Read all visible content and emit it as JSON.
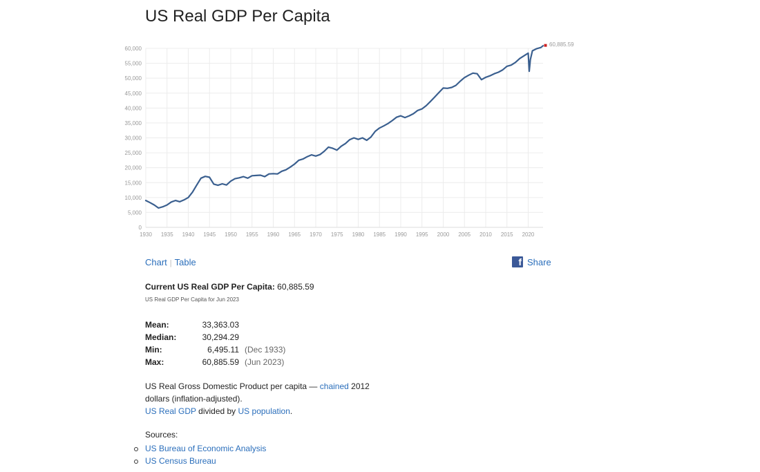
{
  "page": {
    "title": "US Real GDP Per Capita"
  },
  "chart_data": {
    "type": "line",
    "title": "",
    "xlabel": "",
    "ylabel": "",
    "xlim": [
      1930,
      2023.5
    ],
    "ylim": [
      0,
      60000
    ],
    "x_ticks": [
      1930,
      1935,
      1940,
      1945,
      1950,
      1955,
      1960,
      1965,
      1970,
      1975,
      1980,
      1985,
      1990,
      1995,
      2000,
      2005,
      2010,
      2015,
      2020
    ],
    "y_ticks": [
      0,
      5000,
      10000,
      15000,
      20000,
      25000,
      30000,
      35000,
      40000,
      45000,
      50000,
      55000,
      60000
    ],
    "y_tick_labels": [
      "0",
      "5,000",
      "10,000",
      "15,000",
      "20,000",
      "25,000",
      "30,000",
      "35,000",
      "40,000",
      "45,000",
      "50,000",
      "55,000",
      "60,000"
    ],
    "grid": true,
    "line_color": "#3a5f8f",
    "last_point_color": "#cc2222",
    "last_value_label": "60,885.59",
    "series": [
      {
        "x": [
          1930,
          1931,
          1932,
          1933,
          1934,
          1935,
          1936,
          1937,
          1938,
          1939,
          1940,
          1941,
          1942,
          1943,
          1944,
          1945,
          1946,
          1947,
          1948,
          1949,
          1950,
          1951,
          1952,
          1953,
          1954,
          1955,
          1956,
          1957,
          1958,
          1959,
          1960,
          1961,
          1962,
          1963,
          1964,
          1965,
          1966,
          1967,
          1968,
          1969,
          1970,
          1971,
          1972,
          1973,
          1974,
          1975,
          1976,
          1977,
          1978,
          1979,
          1980,
          1981,
          1982,
          1983,
          1984,
          1985,
          1986,
          1987,
          1988,
          1989,
          1990,
          1991,
          1992,
          1993,
          1994,
          1995,
          1996,
          1997,
          1998,
          1999,
          2000,
          2001,
          2002,
          2003,
          2004,
          2005,
          2006,
          2007,
          2008,
          2009,
          2010,
          2011,
          2012,
          2013,
          2014,
          2015,
          2016,
          2017,
          2018,
          2019,
          2020,
          2020.25,
          2020.5,
          2021,
          2022,
          2023,
          2023.5
        ],
        "y": [
          9000,
          8300,
          7500,
          6495,
          6900,
          7500,
          8500,
          9000,
          8600,
          9200,
          10000,
          11800,
          14200,
          16500,
          17100,
          16800,
          14500,
          14100,
          14600,
          14200,
          15500,
          16300,
          16600,
          17000,
          16500,
          17300,
          17400,
          17500,
          17000,
          17900,
          18000,
          17900,
          18800,
          19300,
          20200,
          21200,
          22500,
          22900,
          23700,
          24300,
          23900,
          24400,
          25500,
          26900,
          26500,
          25900,
          27200,
          28100,
          29400,
          30000,
          29500,
          30000,
          29200,
          30300,
          32200,
          33300,
          34000,
          34800,
          35800,
          36900,
          37400,
          36800,
          37400,
          38100,
          39200,
          39700,
          40800,
          42200,
          43700,
          45200,
          46700,
          46600,
          46900,
          47600,
          49000,
          50200,
          51000,
          51700,
          51500,
          49500,
          50300,
          50800,
          51500,
          52000,
          52800,
          54000,
          54400,
          55300,
          56600,
          57500,
          58400,
          52300,
          56200,
          59200,
          59900,
          60300,
          60886
        ]
      }
    ]
  },
  "tabs": {
    "chart_label": "Chart",
    "sep": "|",
    "table_label": "Table"
  },
  "share": {
    "label": "Share",
    "icon": "facebook-icon",
    "icon_color": "#3b5998"
  },
  "current": {
    "label": "Current US Real GDP Per Capita:",
    "value": "60,885.59",
    "subtitle": "US Real GDP Per Capita for Jun 2023"
  },
  "stats": {
    "mean_label": "Mean:",
    "mean_value": "33,363.03",
    "median_label": "Median:",
    "median_value": "30,294.29",
    "min_label": "Min:",
    "min_value": "6,495.11",
    "min_date": "(Dec 1933)",
    "max_label": "Max:",
    "max_value": "60,885.59",
    "max_date": "(Jun 2023)"
  },
  "description": {
    "text1": "US Real Gross Domestic Product per capita — ",
    "link_chained": "chained",
    "text2": " 2012 dollars (inflation-adjusted).",
    "link_real_gdp": "US Real GDP",
    "text3": " divided by ",
    "link_population": "US population",
    "text4": "."
  },
  "sources": {
    "label": "Sources:",
    "items": [
      "US Bureau of Economic Analysis",
      "US Census Bureau"
    ]
  }
}
